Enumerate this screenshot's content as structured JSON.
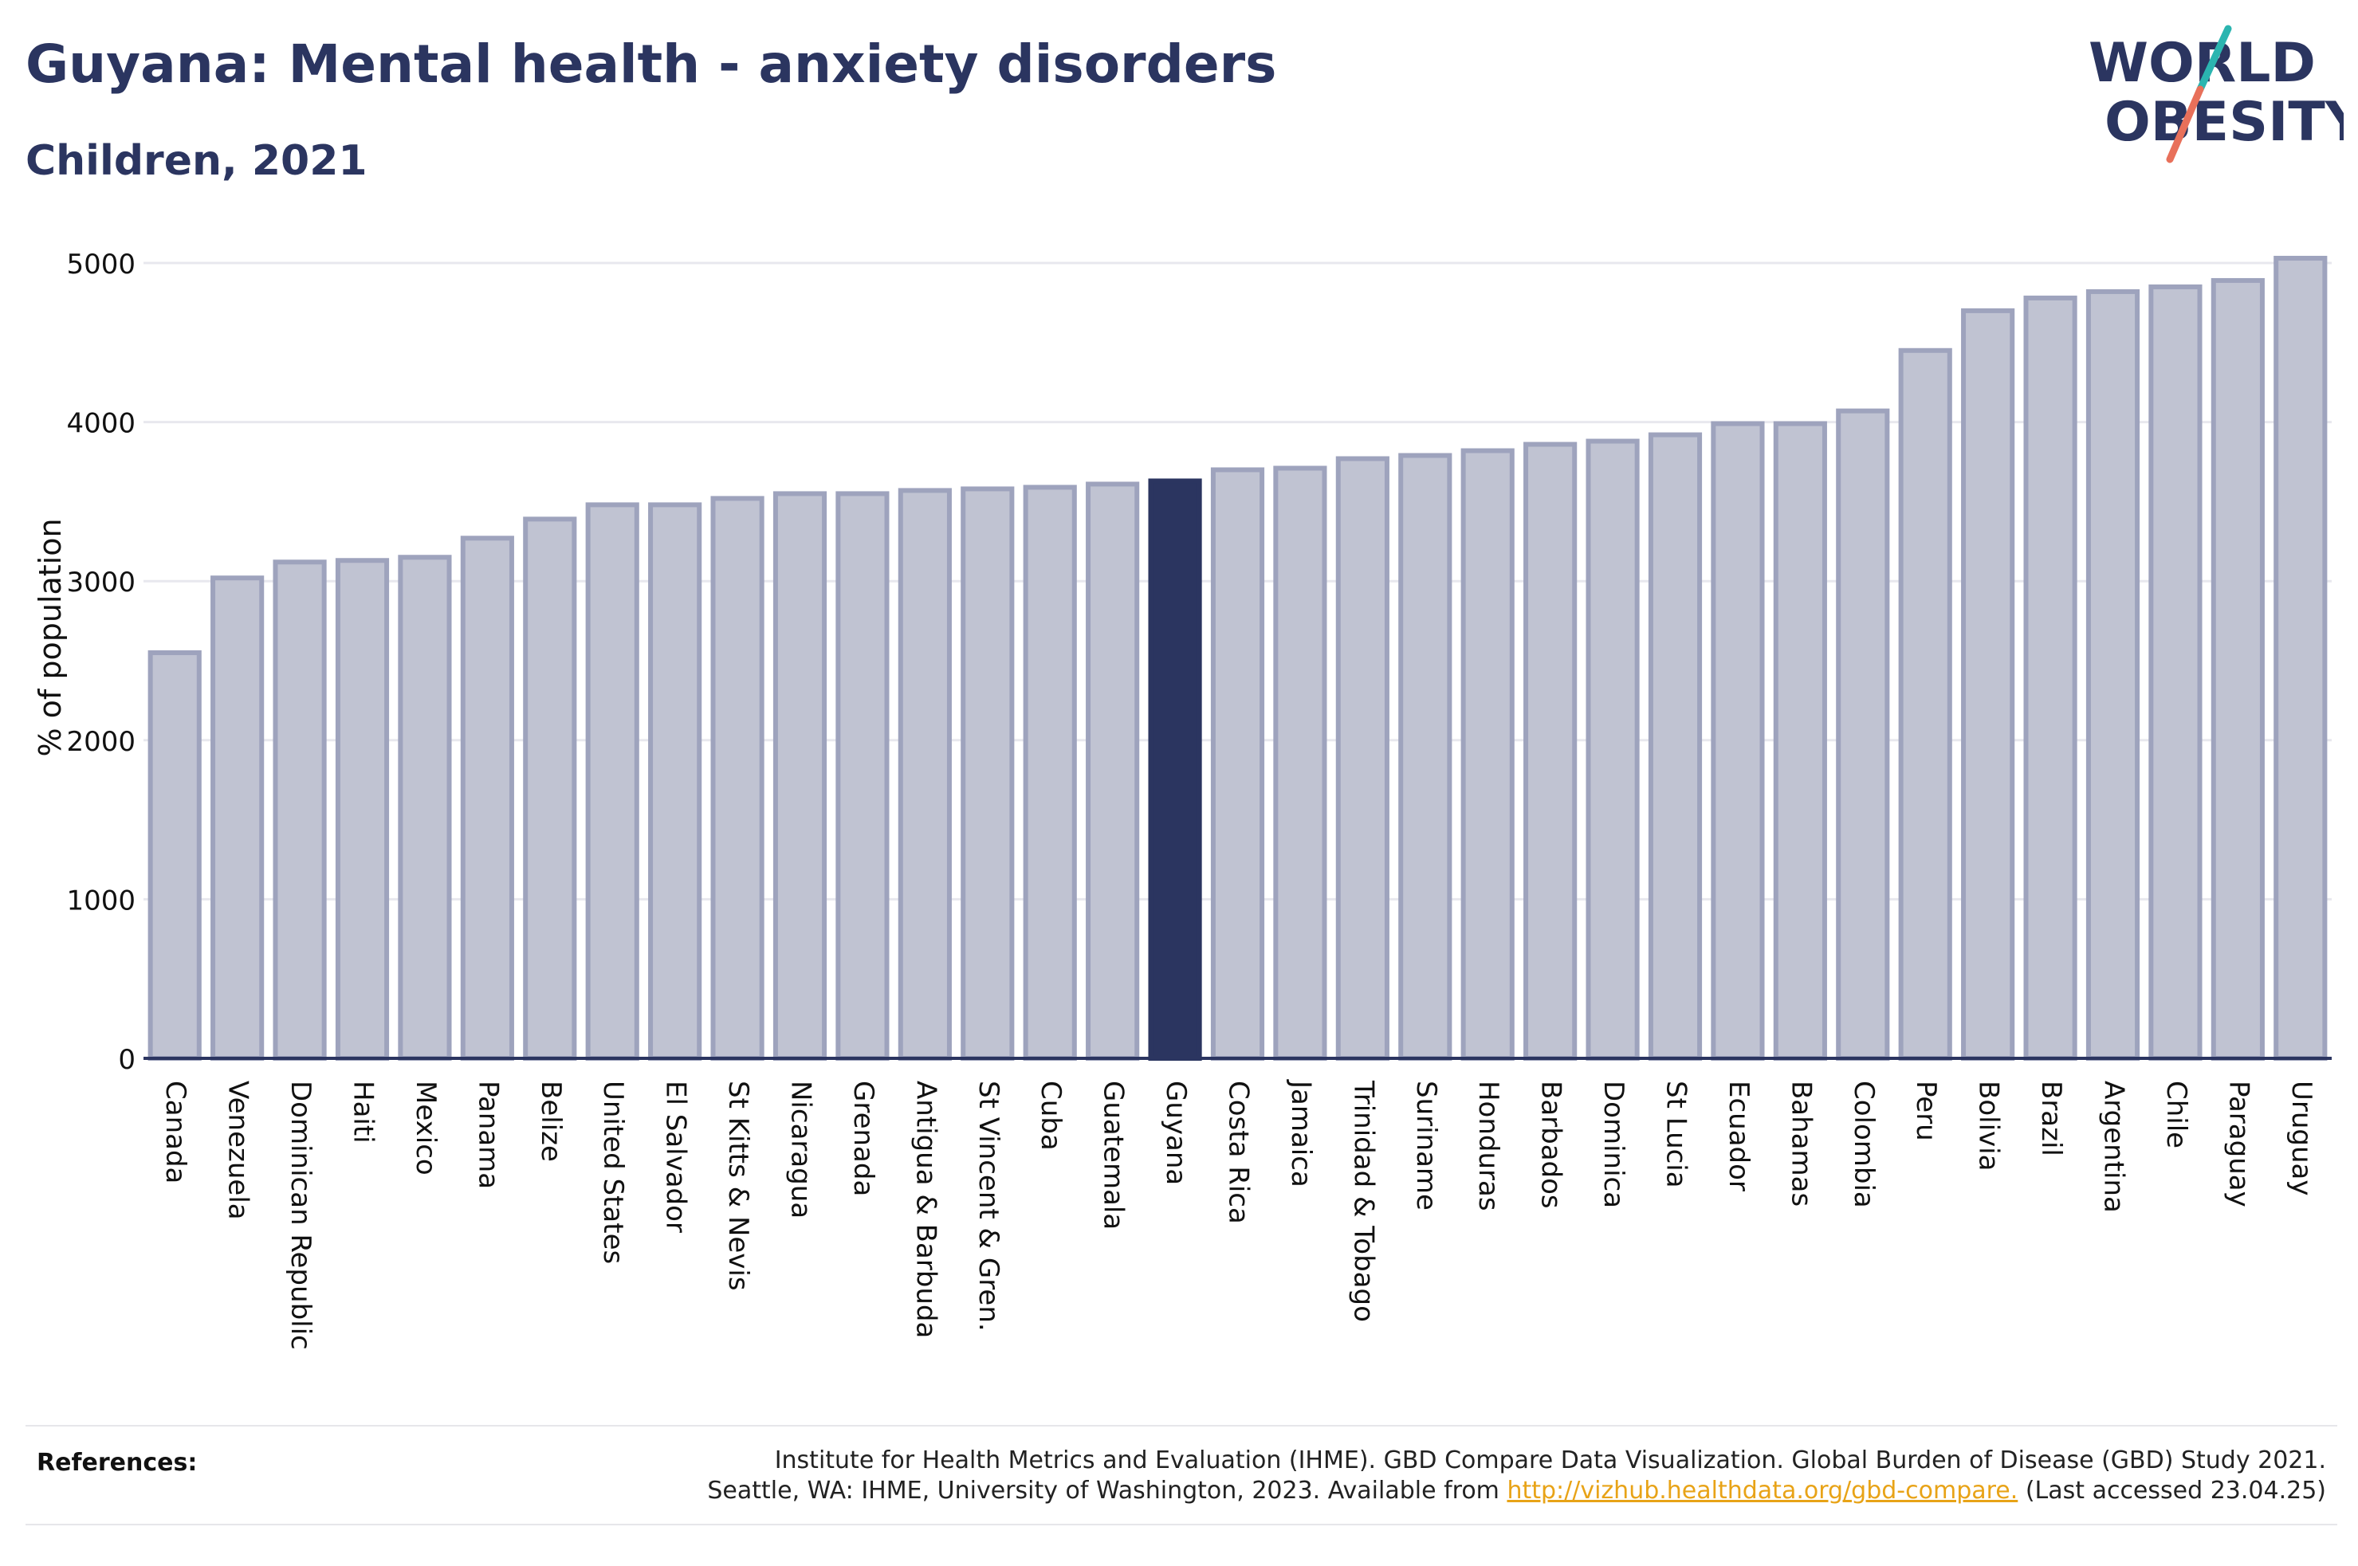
{
  "header": {
    "title": "Guyana: Mental health - anxiety disorders",
    "subtitle": "Children, 2021"
  },
  "logo": {
    "line1": "WORLD",
    "line2": "OBESITY",
    "accent_teal": "#2bb5b0",
    "accent_coral": "#e8705a"
  },
  "colors": {
    "bar_default": "#c0c3d2",
    "bar_default_stroke": "#9ea3bd",
    "bar_highlight": "#2b3560",
    "axis": "#2b3560",
    "grid": "#e8e8ee"
  },
  "chart_data": {
    "type": "bar",
    "ylabel": "% of population",
    "ylim": [
      0,
      5000
    ],
    "yticks": [
      0,
      1000,
      2000,
      3000,
      4000,
      5000
    ],
    "grid": true,
    "highlight": "Guyana",
    "categories": [
      "Canada",
      "Venezuela",
      "Dominican Republic",
      "Haiti",
      "Mexico",
      "Panama",
      "Belize",
      "United States",
      "El Salvador",
      "St Kitts & Nevis",
      "Nicaragua",
      "Grenada",
      "Antigua & Barbuda",
      "St Vincent & Gren.",
      "Cuba",
      "Guatemala",
      "Guyana",
      "Costa Rica",
      "Jamaica",
      "Trinidad & Tobago",
      "Suriname",
      "Honduras",
      "Barbados",
      "Dominica",
      "St Lucia",
      "Ecuador",
      "Bahamas",
      "Colombia",
      "Peru",
      "Bolivia",
      "Brazil",
      "Argentina",
      "Chile",
      "Paraguay",
      "Uruguay"
    ],
    "values": [
      2550,
      3020,
      3120,
      3130,
      3150,
      3270,
      3390,
      3480,
      3480,
      3520,
      3550,
      3550,
      3570,
      3580,
      3590,
      3610,
      3630,
      3700,
      3710,
      3770,
      3790,
      3820,
      3860,
      3880,
      3920,
      3990,
      3990,
      4070,
      4450,
      4700,
      4780,
      4820,
      4850,
      4890,
      5030
    ]
  },
  "references": {
    "label": "References:",
    "line1": "Institute for Health Metrics and Evaluation (IHME). GBD Compare Data Visualization. Global Burden of Disease (GBD) Study 2021.",
    "line2_prefix": "Seattle, WA: IHME, University of Washington, 2023. Available from ",
    "link": "http://vizhub.healthdata.org/gbd-compare.",
    "line2_suffix": " (Last accessed 23.04.25)"
  }
}
